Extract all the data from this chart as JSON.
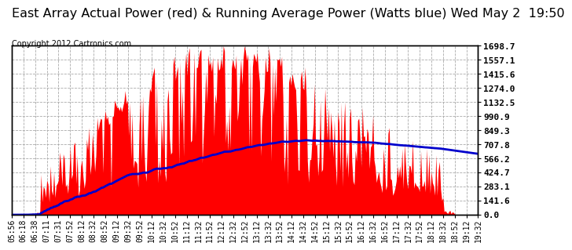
{
  "title": "East Array Actual Power (red) & Running Average Power (Watts blue) Wed May 2  19:50",
  "copyright": "Copyright 2012 Cartronics.com",
  "ylabel_right_values": [
    1698.7,
    1557.1,
    1415.6,
    1274.0,
    1132.5,
    990.9,
    849.3,
    707.8,
    566.2,
    424.7,
    283.1,
    141.6,
    0.0
  ],
  "ymax": 1698.7,
  "ymin": 0.0,
  "bar_color": "#ff0000",
  "avg_color": "#0000cc",
  "background_color": "#ffffff",
  "grid_color": "#aaaaaa",
  "title_fontsize": 11.5,
  "copyright_fontsize": 7,
  "tick_fontsize": 7,
  "x_labels": [
    "05:56",
    "06:18",
    "06:38",
    "07:11",
    "07:31",
    "07:52",
    "08:12",
    "08:32",
    "08:52",
    "09:12",
    "09:32",
    "09:52",
    "10:12",
    "10:32",
    "10:52",
    "11:12",
    "11:32",
    "11:52",
    "12:12",
    "12:32",
    "12:52",
    "13:12",
    "13:32",
    "13:52",
    "14:12",
    "14:32",
    "14:52",
    "15:12",
    "15:32",
    "15:52",
    "16:12",
    "16:32",
    "16:52",
    "17:12",
    "17:32",
    "17:52",
    "18:12",
    "18:32",
    "18:52",
    "19:12",
    "19:32"
  ]
}
